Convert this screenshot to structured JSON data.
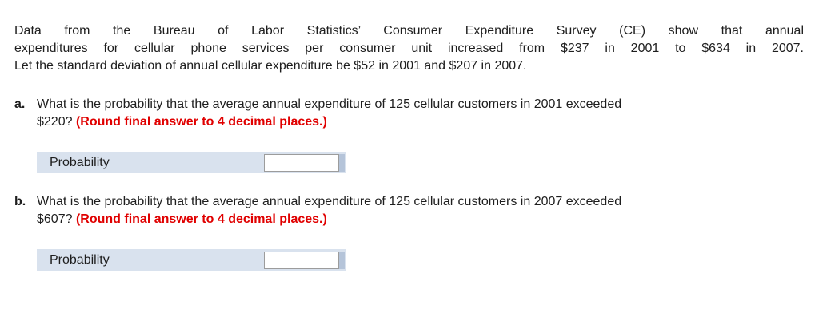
{
  "colors": {
    "text": "#1e1e1e",
    "row_bg": "#d9e2ee",
    "row_strip": "#b5c4d9",
    "input_border": "#9c9c9c",
    "instruction_red": "#e00000"
  },
  "intro": {
    "lines": [
      "Data from the Bureau of Labor Statistics’ Consumer Expenditure Survey (CE) show that annual",
      "expenditures for cellular phone services per consumer unit increased from $237 in 2001 to $634 in 2007.",
      "Let the standard deviation of annual cellular expenditure be $52 in 2001 and $207 in 2007."
    ]
  },
  "parts": [
    {
      "label": "a.",
      "question_line1": "What is the probability that the average annual expenditure of 125 cellular customers in 2001 exceeded",
      "question_line2": "$220?",
      "instruction": "(Round final answer to 4 decimal places.)",
      "field_label": "Probability",
      "input_value": ""
    },
    {
      "label": "b.",
      "question_line1": "What is the probability that the average annual expenditure of 125 cellular customers in 2007 exceeded",
      "question_line2": "$607?",
      "instruction": "(Round final answer to 4 decimal places.)",
      "field_label": "Probability",
      "input_value": ""
    }
  ]
}
